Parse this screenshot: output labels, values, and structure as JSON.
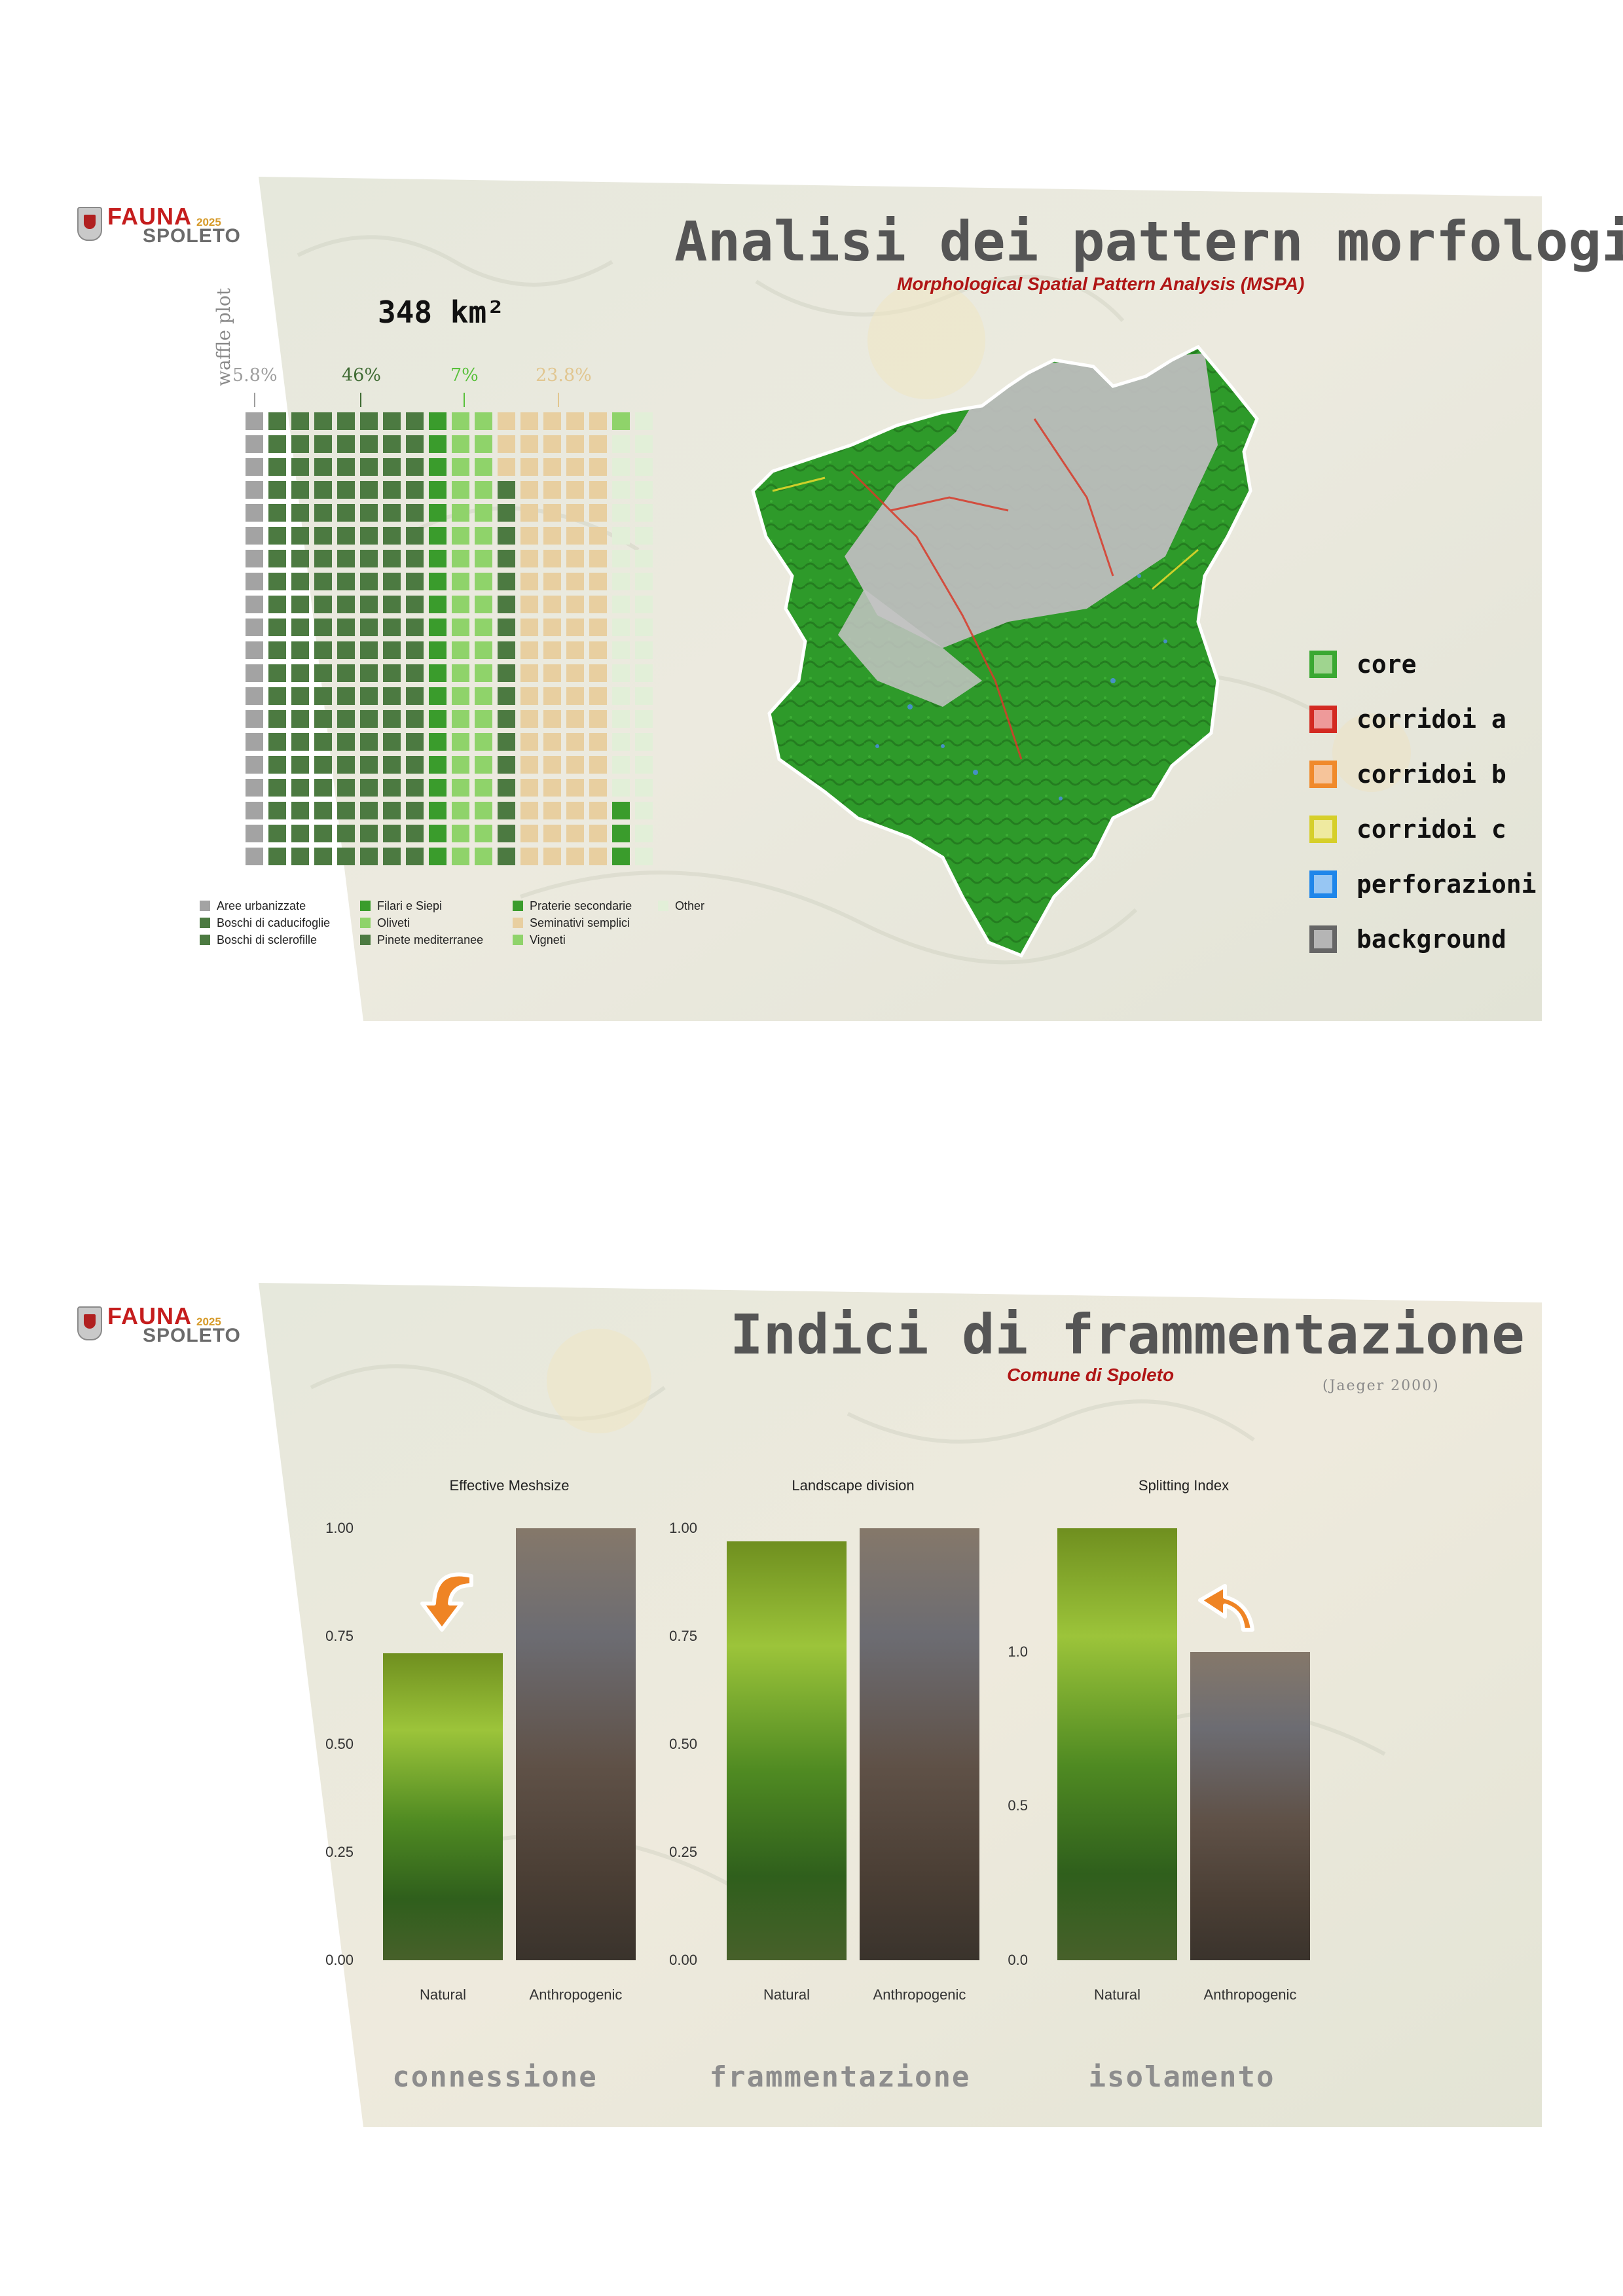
{
  "logo": {
    "name": "FAUNA",
    "year": "2025",
    "city": "SPOLETO"
  },
  "slide1": {
    "title": "Analisi dei pattern morfologici",
    "subtitle": "Morphological Spatial Pattern Analysis (MSPA)",
    "area": "348 km²",
    "waffle_axis_label": "waffle plot",
    "percent_labels": [
      {
        "text": "5.8%",
        "color": "#9e9e9e"
      },
      {
        "text": "46%",
        "color": "#3f6b33"
      },
      {
        "text": "7%",
        "color": "#58c03a"
      },
      {
        "text": "23.8%",
        "color": "#e1c690"
      }
    ],
    "waffle_legend": [
      {
        "label": "Aree urbanizzate",
        "color": "#a3a3a3"
      },
      {
        "label": "Boschi di caducifoglie",
        "color": "#4c7a41"
      },
      {
        "label": "Boschi di sclerofille",
        "color": "#4c7a41"
      },
      {
        "label": "Filari e Siepi",
        "color": "#3a9c2c"
      },
      {
        "label": "Oliveti",
        "color": "#8fd36a"
      },
      {
        "label": "Pinete mediterranee",
        "color": "#4c7a41"
      },
      {
        "label": "Praterie secondarie",
        "color": "#3a9c2c"
      },
      {
        "label": "Seminativi semplici",
        "color": "#e8cfa0"
      },
      {
        "label": "Vigneti",
        "color": "#8fd36a"
      },
      {
        "label": "Other",
        "color": "#e2efd8"
      }
    ],
    "mspa_legend": [
      {
        "label": "core",
        "border": "#3aa832",
        "fill": "#9fd48f"
      },
      {
        "label": "corridoi a",
        "border": "#d32a22",
        "fill": "#ee9a9a"
      },
      {
        "label": "corridoi b",
        "border": "#f08a2c",
        "fill": "#f6c49a"
      },
      {
        "label": "corridoi c",
        "border": "#d6cf2a",
        "fill": "#efeaa0"
      },
      {
        "label": "perforazioni",
        "border": "#1f86ea",
        "fill": "#97c6f3"
      },
      {
        "label": "background",
        "border": "#666666",
        "fill": "#b5b5b5"
      }
    ]
  },
  "slide2": {
    "title": "Indici di frammentazione",
    "subtitle": "Comune di Spoleto",
    "citation": "(Jaeger 2000)",
    "keywords": [
      "connessione",
      "frammentazione",
      "isolamento"
    ],
    "chart_data": [
      {
        "type": "bar",
        "title": "Effective Meshsize",
        "categories": [
          "Natural",
          "Anthropogenic"
        ],
        "values": [
          0.71,
          1.0
        ],
        "ylim": [
          0,
          1
        ],
        "yticks": [
          "0.00",
          "0.25",
          "0.50",
          "0.75",
          "1.00"
        ]
      },
      {
        "type": "bar",
        "title": "Landscape division",
        "categories": [
          "Natural",
          "Anthropogenic"
        ],
        "values": [
          0.97,
          1.0
        ],
        "ylim": [
          0,
          1
        ],
        "yticks": [
          "0.00",
          "0.25",
          "0.50",
          "0.75",
          "1.00"
        ]
      },
      {
        "type": "bar",
        "title": "Splitting Index",
        "categories": [
          "Natural",
          "Anthropogenic"
        ],
        "values": [
          1.4,
          1.0
        ],
        "ylim": [
          0,
          1.4
        ],
        "yticks": [
          "0.0",
          "0.5",
          "1.0"
        ]
      }
    ]
  }
}
